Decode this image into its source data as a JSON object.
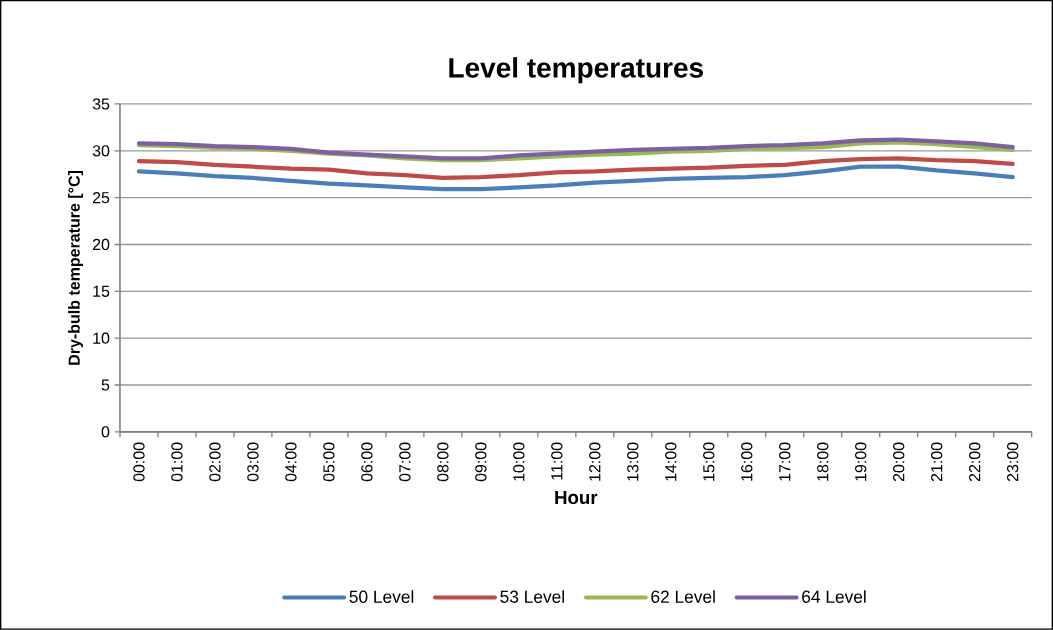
{
  "chart_data": {
    "type": "line",
    "title": "Level temperatures",
    "xlabel": "Hour",
    "ylabel": "Dry-bulb temperature [°C]",
    "categories": [
      "00:00",
      "01:00",
      "02:00",
      "03:00",
      "04:00",
      "05:00",
      "06:00",
      "07:00",
      "08:00",
      "09:00",
      "10:00",
      "11:00",
      "12:00",
      "13:00",
      "14:00",
      "15:00",
      "16:00",
      "17:00",
      "18:00",
      "19:00",
      "20:00",
      "21:00",
      "22:00",
      "23:00"
    ],
    "series": [
      {
        "name": "50 Level",
        "color": "#4a7ebb",
        "values": [
          27.8,
          27.6,
          27.3,
          27.1,
          26.8,
          26.5,
          26.3,
          26.1,
          25.9,
          25.9,
          26.1,
          26.3,
          26.6,
          26.8,
          27.0,
          27.1,
          27.2,
          27.4,
          27.8,
          28.3,
          28.3,
          27.9,
          27.6,
          27.2
        ]
      },
      {
        "name": "53 Level",
        "color": "#be4b48",
        "values": [
          28.9,
          28.8,
          28.5,
          28.3,
          28.1,
          28.0,
          27.6,
          27.4,
          27.1,
          27.2,
          27.4,
          27.7,
          27.8,
          28.0,
          28.1,
          28.2,
          28.4,
          28.5,
          28.9,
          29.1,
          29.2,
          29.0,
          28.9,
          28.6
        ]
      },
      {
        "name": "62 Level",
        "color": "#98b954",
        "values": [
          30.6,
          30.5,
          30.3,
          30.2,
          30.0,
          29.7,
          29.5,
          29.2,
          29.0,
          29.0,
          29.2,
          29.4,
          29.6,
          29.7,
          29.9,
          30.0,
          30.2,
          30.3,
          30.4,
          30.8,
          30.9,
          30.7,
          30.4,
          30.1
        ]
      },
      {
        "name": "64 Level",
        "color": "#7d60a0",
        "values": [
          30.8,
          30.7,
          30.5,
          30.4,
          30.2,
          29.8,
          29.6,
          29.4,
          29.2,
          29.2,
          29.5,
          29.7,
          29.9,
          30.1,
          30.2,
          30.3,
          30.5,
          30.6,
          30.8,
          31.1,
          31.2,
          31.0,
          30.8,
          30.4
        ]
      }
    ],
    "ylim": [
      0,
      35
    ],
    "yticks": [
      0,
      5,
      10,
      15,
      20,
      25,
      30,
      35
    ],
    "grid": "y",
    "legend": "bottom",
    "marker": "none",
    "line_style": "solid"
  }
}
